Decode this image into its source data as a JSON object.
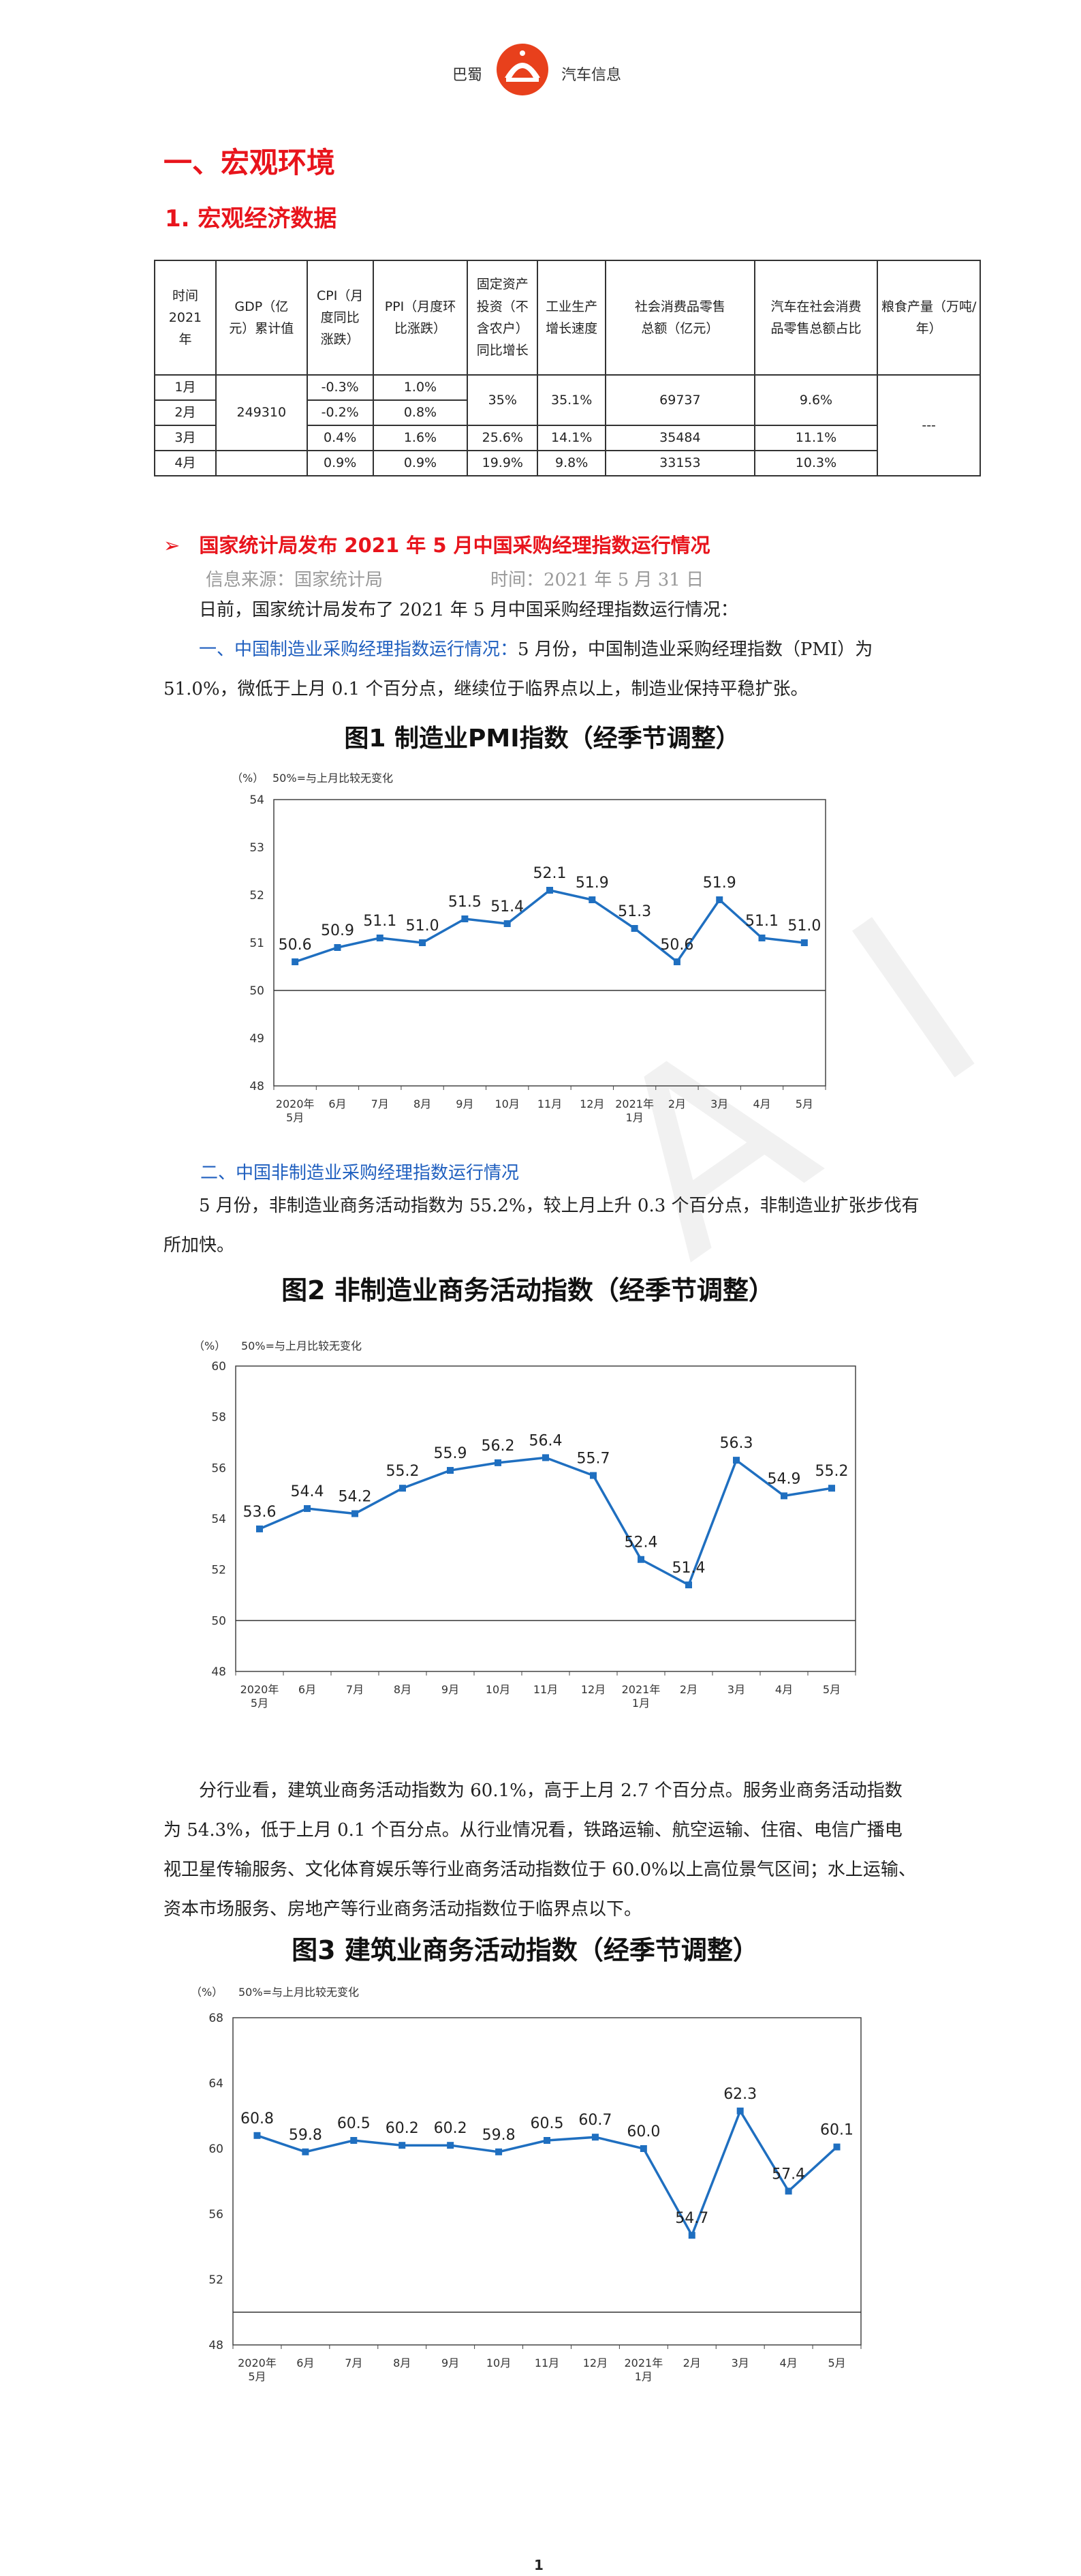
{
  "header": {
    "left": "巴蜀",
    "right": "汽车信息"
  },
  "section_title": "一、宏观环境",
  "subsection_title": "1. 宏观经济数据",
  "macro_table": {
    "headers": [
      "时间\n2021\n年",
      "GDP（亿\n元）累计值",
      "CPI（月\n度同比\n涨跌）",
      "PPI（月度环\n比涨跌）",
      "固定资产\n投资（不\n含农户）\n同比增长",
      "工业生产\n增长速度",
      "社会消费品零售\n总额（亿元）",
      "汽车在社会消费\n品零售总额占比",
      "粮食产量（万吨/\n年）"
    ],
    "months": [
      "1月",
      "2月",
      "3月",
      "4月"
    ],
    "gdp": "249310",
    "cpi": [
      "-0.3%",
      "-0.2%",
      "0.4%",
      "0.9%"
    ],
    "ppi": [
      "1.0%",
      "0.8%",
      "1.6%",
      "0.9%"
    ],
    "fixed_invest": [
      "35%",
      "25.6%",
      "19.9%"
    ],
    "industrial": [
      "35.1%",
      "14.1%",
      "9.8%"
    ],
    "retail": [
      "69737",
      "35484",
      "33153"
    ],
    "auto_share": [
      "9.6%",
      "11.1%",
      "10.3%"
    ],
    "grain": "---"
  },
  "news": {
    "arrow": "➢",
    "title": "国家统计局发布 2021 年 5 月中国采购经理指数运行情况",
    "source": "信息来源：国家统计局",
    "time": "时间：2021 年 5 月 31 日",
    "intro": "日前，国家统计局发布了 2021 年 5 月中国采购经理指数运行情况：",
    "p1_heading": "一、中国制造业采购经理指数运行情况：",
    "p1_text_a": "5 月份，中国制造业采购经理指数（PMI）为",
    "p1_text_b": "51.0%，微低于上月 0.1 个百分点，继续位于临界点以上，制造业保持平稳扩张。",
    "p2_heading": "二、中国非制造业采购经理指数运行情况",
    "p2_text": "5 月份，非制造业商务活动指数为 55.2%，较上月上升 0.3 个百分点，非制造业扩张步伐有所加快。",
    "p3_text": "分行业看，建筑业商务活动指数为 60.1%，高于上月 2.7 个百分点。服务业商务活动指数为 54.3%，低于上月 0.1 个百分点。从行业情况看，铁路运输、航空运输、住宿、电信广播电视卫星传输服务、文化体育娱乐等行业商务活动指数位于 60.0%以上高位景气区间；水上运输、资本市场服务、房地产等行业商务活动指数位于临界点以下。"
  },
  "chart_data": [
    {
      "type": "line",
      "title": "图1 制造业PMI指数（经季节调整）",
      "unit_label": "（%）",
      "note": "50%=与上月比较无变化",
      "categories": [
        "2020年\n5月",
        "6月",
        "7月",
        "8月",
        "9月",
        "10月",
        "11月",
        "12月",
        "2021年\n1月",
        "2月",
        "3月",
        "4月",
        "5月"
      ],
      "values": [
        50.6,
        50.9,
        51.1,
        51.0,
        51.5,
        51.4,
        52.1,
        51.9,
        51.3,
        50.6,
        51.9,
        51.1,
        51.0
      ],
      "value_labels": [
        "50.6",
        "50.9",
        "51.1",
        "51.0",
        "51.5",
        "51.4",
        "52.1",
        "51.9",
        "51.3",
        "50.6",
        "51.9",
        "51.1",
        "51.0"
      ],
      "yticks": [
        48,
        49,
        50,
        51,
        52,
        53,
        54
      ],
      "ylim": [
        48,
        54
      ],
      "threshold": 50,
      "color": "#1f6fc0"
    },
    {
      "type": "line",
      "title": "图2 非制造业商务活动指数（经季节调整）",
      "unit_label": "（%）",
      "note": "50%=与上月比较无变化",
      "categories": [
        "2020年\n5月",
        "6月",
        "7月",
        "8月",
        "9月",
        "10月",
        "11月",
        "12月",
        "2021年\n1月",
        "2月",
        "3月",
        "4月",
        "5月"
      ],
      "values": [
        53.6,
        54.4,
        54.2,
        55.2,
        55.9,
        56.2,
        56.4,
        55.7,
        52.4,
        51.4,
        56.3,
        54.9,
        55.2
      ],
      "value_labels": [
        "53.6",
        "54.4",
        "54.2",
        "55.2",
        "55.9",
        "56.2",
        "56.4",
        "55.7",
        "52.4",
        "51.4",
        "56.3",
        "54.9",
        "55.2"
      ],
      "yticks": [
        48,
        50,
        52,
        54,
        56,
        58,
        60
      ],
      "ylim": [
        48,
        60
      ],
      "threshold": 50,
      "color": "#1f6fc0"
    },
    {
      "type": "line",
      "title": "图3 建筑业商务活动指数（经季节调整）",
      "unit_label": "（%）",
      "note": "50%=与上月比较无变化",
      "categories": [
        "2020年\n5月",
        "6月",
        "7月",
        "8月",
        "9月",
        "10月",
        "11月",
        "12月",
        "2021年\n1月",
        "2月",
        "3月",
        "4月",
        "5月"
      ],
      "values": [
        60.8,
        59.8,
        60.5,
        60.2,
        60.2,
        59.8,
        60.5,
        60.7,
        60.0,
        54.7,
        62.3,
        57.4,
        60.1
      ],
      "value_labels": [
        "60.8",
        "59.8",
        "60.5",
        "60.2",
        "60.2",
        "59.8",
        "60.5",
        "60.7",
        "60.0",
        "54.7",
        "62.3",
        "57.4",
        "60.1"
      ],
      "yticks": [
        48,
        52,
        56,
        60,
        64,
        68
      ],
      "ylim": [
        48,
        68
      ],
      "threshold": 50,
      "color": "#1f6fc0"
    }
  ],
  "page_number": "1"
}
